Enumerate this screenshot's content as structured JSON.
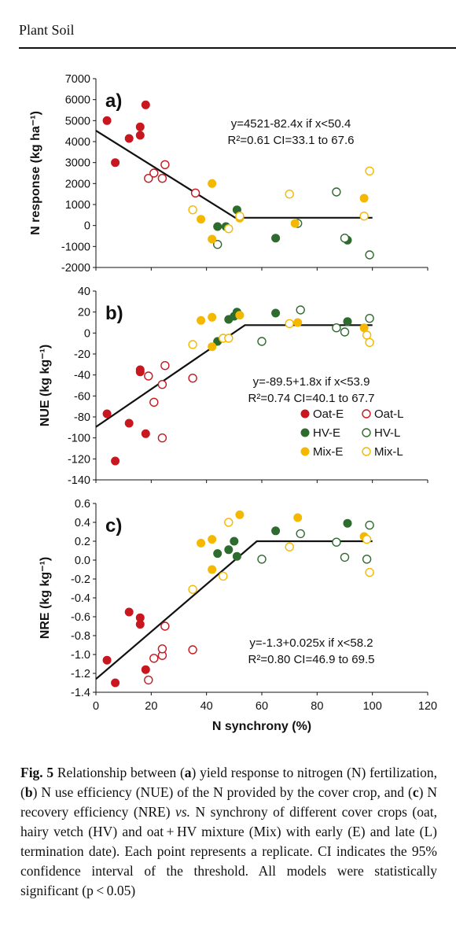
{
  "header": {
    "journal": "Plant Soil"
  },
  "colors": {
    "oat": "#c8171e",
    "hv": "#2e6b2e",
    "mix": "#f5b800",
    "line": "#111111"
  },
  "chart_data": [
    {
      "type": "scatter",
      "panel": "a)",
      "ylabel": "N response (kg ha⁻¹)",
      "ylim": [
        -2000,
        7000
      ],
      "yticks": [
        -2000,
        -1000,
        0,
        1000,
        2000,
        3000,
        4000,
        5000,
        6000,
        7000
      ],
      "xlim": [
        0,
        120
      ],
      "annotation": [
        "y=4521-82.4x if x<50.4",
        "R²=0.61 CI=33.1 to 67.6"
      ],
      "fit": [
        [
          0,
          4521
        ],
        [
          50.4,
          370
        ],
        [
          100,
          370
        ]
      ],
      "series": [
        {
          "name": "Oat-E",
          "group": "oat",
          "filled": true,
          "points": [
            [
              4,
              5000
            ],
            [
              7,
              3000
            ],
            [
              12,
              4150
            ],
            [
              16,
              4300
            ],
            [
              16,
              4700
            ],
            [
              18,
              5750
            ]
          ]
        },
        {
          "name": "Oat-L",
          "group": "oat",
          "filled": false,
          "points": [
            [
              19,
              2250
            ],
            [
              21,
              2500
            ],
            [
              24,
              2250
            ],
            [
              25,
              2900
            ],
            [
              36,
              1550
            ]
          ]
        },
        {
          "name": "HV-E",
          "group": "hv",
          "filled": true,
          "points": [
            [
              44,
              -50
            ],
            [
              47,
              -50
            ],
            [
              51,
              750
            ],
            [
              65,
              -600
            ],
            [
              91,
              -700
            ]
          ]
        },
        {
          "name": "HV-L",
          "group": "hv",
          "filled": false,
          "points": [
            [
              44,
              -900
            ],
            [
              73,
              100
            ],
            [
              87,
              1600
            ],
            [
              90,
              -600
            ],
            [
              99,
              -1400
            ]
          ]
        },
        {
          "name": "Mix-E",
          "group": "mix",
          "filled": true,
          "points": [
            [
              38,
              300
            ],
            [
              42,
              2000
            ],
            [
              42,
              -650
            ],
            [
              52,
              350
            ],
            [
              72,
              100
            ],
            [
              97,
              1300
            ]
          ]
        },
        {
          "name": "Mix-L",
          "group": "mix",
          "filled": false,
          "points": [
            [
              35,
              750
            ],
            [
              48,
              -150
            ],
            [
              52,
              450
            ],
            [
              70,
              1500
            ],
            [
              97,
              450
            ],
            [
              99,
              2600
            ]
          ]
        }
      ]
    },
    {
      "type": "scatter",
      "panel": "b)",
      "ylabel": "NUE (kg kg⁻¹)",
      "ylim": [
        -140,
        40
      ],
      "yticks": [
        -140,
        -120,
        -100,
        -80,
        -60,
        -40,
        -20,
        0,
        20,
        40
      ],
      "xlim": [
        0,
        120
      ],
      "annotation": [
        "y=-89.5+1.8x if x<53.9",
        "R²=0.74 CI=40.1 to 67.7"
      ],
      "fit": [
        [
          0,
          -89.5
        ],
        [
          53.9,
          7.5
        ],
        [
          100,
          7.5
        ]
      ],
      "series": [
        {
          "name": "Oat-E",
          "group": "oat",
          "filled": true,
          "points": [
            [
              4,
              -77
            ],
            [
              7,
              -122
            ],
            [
              12,
              -86
            ],
            [
              16,
              -35
            ],
            [
              16,
              -37
            ],
            [
              18,
              -96
            ]
          ]
        },
        {
          "name": "Oat-L",
          "group": "oat",
          "filled": false,
          "points": [
            [
              19,
              -41
            ],
            [
              21,
              -66
            ],
            [
              24,
              -49
            ],
            [
              25,
              -31
            ],
            [
              24,
              -100
            ],
            [
              35,
              -43
            ]
          ]
        },
        {
          "name": "HV-E",
          "group": "hv",
          "filled": true,
          "points": [
            [
              44,
              -8
            ],
            [
              48,
              13
            ],
            [
              50,
              16
            ],
            [
              51,
              20
            ],
            [
              65,
              19
            ],
            [
              91,
              11
            ]
          ]
        },
        {
          "name": "HV-L",
          "group": "hv",
          "filled": false,
          "points": [
            [
              60,
              -8
            ],
            [
              74,
              22
            ],
            [
              87,
              5
            ],
            [
              90,
              1
            ],
            [
              99,
              14
            ]
          ]
        },
        {
          "name": "Mix-E",
          "group": "mix",
          "filled": true,
          "points": [
            [
              38,
              12
            ],
            [
              42,
              15
            ],
            [
              42,
              -13
            ],
            [
              52,
              17
            ],
            [
              73,
              10
            ],
            [
              97,
              5
            ]
          ]
        },
        {
          "name": "Mix-L",
          "group": "mix",
          "filled": false,
          "points": [
            [
              35,
              -11
            ],
            [
              46,
              -5
            ],
            [
              48,
              -5
            ],
            [
              70,
              9
            ],
            [
              98,
              -2
            ],
            [
              99,
              -9
            ]
          ]
        }
      ],
      "legend": [
        "Oat-E",
        "Oat-L",
        "HV-E",
        "HV-L",
        "Mix-E",
        "Mix-L"
      ],
      "legend_position": "bottom-right"
    },
    {
      "type": "scatter",
      "panel": "c)",
      "ylabel": "NRE (kg kg⁻¹)",
      "ylim": [
        -1.4,
        0.6
      ],
      "yticks": [
        -1.4,
        -1.2,
        -1.0,
        -0.8,
        -0.6,
        -0.4,
        -0.2,
        0.0,
        0.2,
        0.4,
        0.6
      ],
      "xlim": [
        0,
        120
      ],
      "xticks": [
        0,
        20,
        40,
        60,
        80,
        100,
        120
      ],
      "xlabel": "N synchrony (%)",
      "annotation": [
        "y=-1.3+0.025x if x<58.2",
        "R²=0.80 CI=46.9 to 69.5"
      ],
      "fit": [
        [
          0,
          -1.26
        ],
        [
          58.2,
          0.2
        ],
        [
          100,
          0.2
        ]
      ],
      "series": [
        {
          "name": "Oat-E",
          "group": "oat",
          "filled": true,
          "points": [
            [
              4,
              -1.06
            ],
            [
              7,
              -1.3
            ],
            [
              12,
              -0.55
            ],
            [
              16,
              -0.61
            ],
            [
              16,
              -0.68
            ],
            [
              18,
              -1.16
            ]
          ]
        },
        {
          "name": "Oat-L",
          "group": "oat",
          "filled": false,
          "points": [
            [
              19,
              -1.27
            ],
            [
              21,
              -1.04
            ],
            [
              24,
              -1.01
            ],
            [
              24,
              -0.94
            ],
            [
              25,
              -0.7
            ],
            [
              35,
              -0.95
            ]
          ]
        },
        {
          "name": "HV-E",
          "group": "hv",
          "filled": true,
          "points": [
            [
              44,
              0.07
            ],
            [
              48,
              0.11
            ],
            [
              50,
              0.2
            ],
            [
              51,
              0.04
            ],
            [
              65,
              0.31
            ],
            [
              91,
              0.39
            ]
          ]
        },
        {
          "name": "HV-L",
          "group": "hv",
          "filled": false,
          "points": [
            [
              60,
              0.01
            ],
            [
              74,
              0.28
            ],
            [
              87,
              0.19
            ],
            [
              90,
              0.03
            ],
            [
              98,
              0.01
            ],
            [
              99,
              0.37
            ]
          ]
        },
        {
          "name": "Mix-E",
          "group": "mix",
          "filled": true,
          "points": [
            [
              38,
              0.18
            ],
            [
              42,
              0.22
            ],
            [
              42,
              -0.1
            ],
            [
              52,
              0.48
            ],
            [
              73,
              0.45
            ],
            [
              97,
              0.25
            ]
          ]
        },
        {
          "name": "Mix-L",
          "group": "mix",
          "filled": false,
          "points": [
            [
              35,
              -0.31
            ],
            [
              46,
              -0.17
            ],
            [
              48,
              0.4
            ],
            [
              70,
              0.14
            ],
            [
              98,
              0.22
            ],
            [
              99,
              -0.13
            ]
          ]
        }
      ]
    }
  ],
  "caption": {
    "lead": "Fig. 5",
    "segments": [
      {
        "t": " Relationship between (",
        "b": false
      },
      {
        "t": "a",
        "b": true
      },
      {
        "t": ") yield response to nitrogen (N) fertilization, (",
        "b": false
      },
      {
        "t": "b",
        "b": true
      },
      {
        "t": ") N use efficiency (NUE) of the N provided by the cover crop, and (",
        "b": false
      },
      {
        "t": "c",
        "b": true
      },
      {
        "t": ") N recovery efficiency (NRE) ",
        "b": false
      },
      {
        "t": "vs.",
        "b": false,
        "i": true
      },
      {
        "t": " N synchrony of different cover crops (oat, hairy vetch (HV) and oat + HV mixture (Mix) with early (E) and late (L) termination date). Each point represents a replicate. CI indicates the 95% confidence interval of the threshold. All models were statistically significant (p < 0.05)",
        "b": false
      }
    ]
  }
}
